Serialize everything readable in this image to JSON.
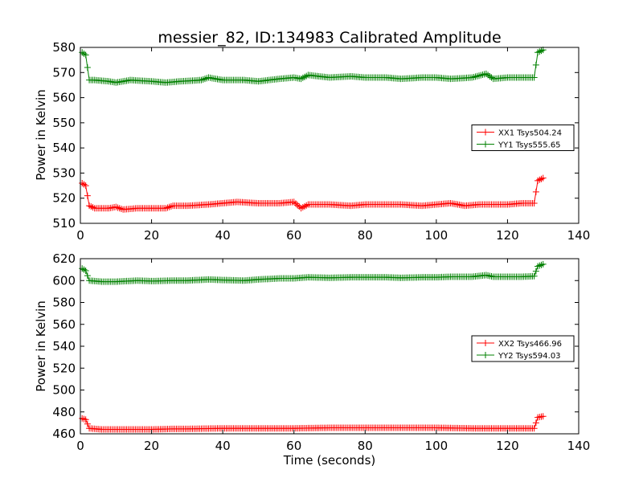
{
  "chart_data": [
    {
      "type": "line",
      "title": "messier_82, ID:134983 Calibrated Amplitude",
      "xlabel": "",
      "ylabel": "Power in Kelvin",
      "xlim": [
        0,
        140
      ],
      "ylim": [
        510,
        580
      ],
      "xticks": [
        0,
        20,
        40,
        60,
        80,
        100,
        120,
        140
      ],
      "yticks": [
        510,
        520,
        530,
        540,
        550,
        560,
        570,
        580
      ],
      "legend_position": "right-middle",
      "series": [
        {
          "name": "XX1 Tsys504.24",
          "color": "#ff0000",
          "marker": "+",
          "points": [
            [
              0.5,
              526
            ],
            [
              1.5,
              525
            ],
            [
              2.5,
              517
            ],
            [
              4,
              516
            ],
            [
              8,
              516
            ],
            [
              10,
              516.5
            ],
            [
              12,
              515.5
            ],
            [
              16,
              516
            ],
            [
              20,
              516
            ],
            [
              24,
              516
            ],
            [
              26,
              517
            ],
            [
              30,
              517
            ],
            [
              36,
              517.5
            ],
            [
              40,
              518
            ],
            [
              44,
              518.5
            ],
            [
              50,
              518
            ],
            [
              56,
              518
            ],
            [
              60,
              518.5
            ],
            [
              62,
              516
            ],
            [
              64,
              517.5
            ],
            [
              70,
              517.5
            ],
            [
              76,
              517
            ],
            [
              80,
              517.5
            ],
            [
              86,
              517.5
            ],
            [
              90,
              517.5
            ],
            [
              96,
              517
            ],
            [
              100,
              517.5
            ],
            [
              104,
              518
            ],
            [
              108,
              517
            ],
            [
              112,
              517.5
            ],
            [
              116,
              517.5
            ],
            [
              120,
              517.5
            ],
            [
              124,
              518
            ],
            [
              127.5,
              518
            ],
            [
              128.5,
              527
            ],
            [
              130,
              528
            ]
          ]
        },
        {
          "name": "YY1 Tsys555.65",
          "color": "#008000",
          "marker": "+",
          "points": [
            [
              0.5,
              578
            ],
            [
              1.5,
              577
            ],
            [
              2.5,
              567
            ],
            [
              4,
              567
            ],
            [
              8,
              566.5
            ],
            [
              10,
              566
            ],
            [
              14,
              567
            ],
            [
              20,
              566.5
            ],
            [
              24,
              566
            ],
            [
              28,
              566.5
            ],
            [
              34,
              567
            ],
            [
              36,
              568
            ],
            [
              40,
              567
            ],
            [
              46,
              567
            ],
            [
              50,
              566.5
            ],
            [
              56,
              567.5
            ],
            [
              60,
              568
            ],
            [
              62,
              567.5
            ],
            [
              64,
              569
            ],
            [
              70,
              568
            ],
            [
              76,
              568.5
            ],
            [
              80,
              568
            ],
            [
              86,
              568
            ],
            [
              90,
              567.5
            ],
            [
              96,
              568
            ],
            [
              100,
              568
            ],
            [
              104,
              567.5
            ],
            [
              110,
              568
            ],
            [
              114,
              569.5
            ],
            [
              116,
              567.5
            ],
            [
              120,
              568
            ],
            [
              124,
              568
            ],
            [
              127.5,
              568
            ],
            [
              128.5,
              578
            ],
            [
              130,
              579
            ]
          ]
        }
      ]
    },
    {
      "type": "line",
      "title": "",
      "xlabel": "Time (seconds)",
      "ylabel": "Power in Kelvin",
      "xlim": [
        0,
        140
      ],
      "ylim": [
        460,
        620
      ],
      "xticks": [
        0,
        20,
        40,
        60,
        80,
        100,
        120,
        140
      ],
      "yticks": [
        460,
        480,
        500,
        520,
        540,
        560,
        580,
        600,
        620
      ],
      "legend_position": "right-middle",
      "series": [
        {
          "name": "XX2 Tsys466.96",
          "color": "#ff0000",
          "marker": "+",
          "points": [
            [
              0.5,
              474
            ],
            [
              1.5,
              473
            ],
            [
              2.5,
              465
            ],
            [
              6,
              464
            ],
            [
              10,
              464
            ],
            [
              14,
              464
            ],
            [
              20,
              464
            ],
            [
              26,
              464.5
            ],
            [
              30,
              464.5
            ],
            [
              40,
              465
            ],
            [
              50,
              465
            ],
            [
              60,
              465
            ],
            [
              70,
              465.5
            ],
            [
              80,
              465.5
            ],
            [
              90,
              465.5
            ],
            [
              100,
              465.5
            ],
            [
              110,
              465
            ],
            [
              120,
              465
            ],
            [
              127.5,
              465
            ],
            [
              128.5,
              475
            ],
            [
              130,
              476
            ]
          ]
        },
        {
          "name": "YY2 Tsys594.03",
          "color": "#008000",
          "marker": "+",
          "points": [
            [
              0.5,
              611
            ],
            [
              1.5,
              609
            ],
            [
              2.5,
              600
            ],
            [
              6,
              599
            ],
            [
              10,
              599
            ],
            [
              16,
              600
            ],
            [
              20,
              599.5
            ],
            [
              26,
              600
            ],
            [
              30,
              600
            ],
            [
              36,
              601
            ],
            [
              40,
              600.5
            ],
            [
              46,
              600
            ],
            [
              50,
              601
            ],
            [
              56,
              602
            ],
            [
              60,
              602
            ],
            [
              64,
              603
            ],
            [
              70,
              602.5
            ],
            [
              76,
              603
            ],
            [
              80,
              603
            ],
            [
              86,
              603
            ],
            [
              90,
              602.5
            ],
            [
              96,
              603
            ],
            [
              100,
              603
            ],
            [
              104,
              603.5
            ],
            [
              110,
              603.5
            ],
            [
              114,
              605
            ],
            [
              116,
              603.5
            ],
            [
              120,
              603.5
            ],
            [
              124,
              603.5
            ],
            [
              127.5,
              604
            ],
            [
              128.5,
              613
            ],
            [
              130,
              615
            ]
          ]
        }
      ]
    }
  ]
}
